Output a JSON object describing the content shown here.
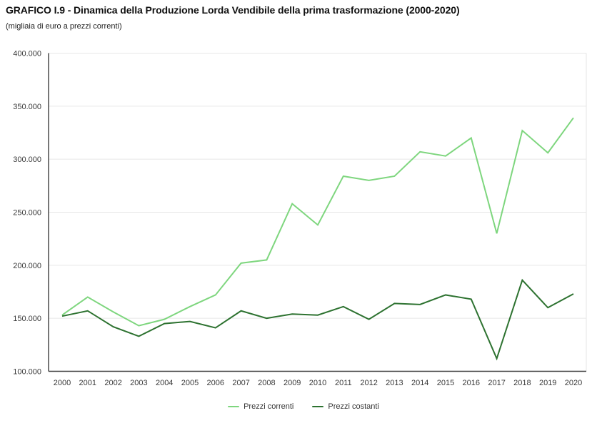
{
  "title": "GRAFICO I.9 - Dinamica della Produzione Lorda Vendibile della prima trasformazione (2000-2020)",
  "subtitle": "(migliaia di euro a prezzi correnti)",
  "chart_data": {
    "type": "line",
    "x": [
      2000,
      2001,
      2002,
      2003,
      2004,
      2005,
      2006,
      2007,
      2008,
      2009,
      2010,
      2011,
      2012,
      2013,
      2014,
      2015,
      2016,
      2017,
      2018,
      2019,
      2020
    ],
    "x_tick_labels": [
      "2000",
      "2001",
      "2002",
      "2003",
      "2004",
      "2005",
      "2006",
      "2007",
      "2008",
      "2009",
      "2010",
      "2011",
      "2012",
      "2013",
      "2014",
      "2015",
      "2016",
      "2017",
      "2018",
      "2019",
      "2020"
    ],
    "series": [
      {
        "name": "Prezzi correnti",
        "color": "#7ed67e",
        "values": [
          153000,
          170000,
          156000,
          143000,
          149000,
          161000,
          172000,
          202000,
          205000,
          258000,
          238000,
          284000,
          280000,
          284000,
          307000,
          303000,
          320000,
          230000,
          327000,
          306000,
          339000
        ]
      },
      {
        "name": "Prezzi costanti",
        "color": "#2d7230",
        "values": [
          152000,
          157000,
          142000,
          133000,
          145000,
          147000,
          141000,
          157000,
          150000,
          154000,
          153000,
          161000,
          149000,
          164000,
          163000,
          172000,
          168000,
          112000,
          186000,
          160000,
          173000
        ]
      }
    ],
    "ylim": [
      100000,
      400000
    ],
    "y_ticks": [
      {
        "value": 100000,
        "label": "100.000"
      },
      {
        "value": 150000,
        "label": "150.000"
      },
      {
        "value": 200000,
        "label": "200.000"
      },
      {
        "value": 250000,
        "label": "250.000"
      },
      {
        "value": 300000,
        "label": "300.000"
      },
      {
        "value": 350000,
        "label": "350.000"
      },
      {
        "value": 400000,
        "label": "400.000"
      }
    ],
    "xlabel": "",
    "ylabel": "",
    "grid": "horizontal",
    "legend_position": "bottom-center",
    "axis_color": "#3c3c3c",
    "grid_color": "#e6e6e6",
    "tick_label_color": "#3a3a3a"
  }
}
